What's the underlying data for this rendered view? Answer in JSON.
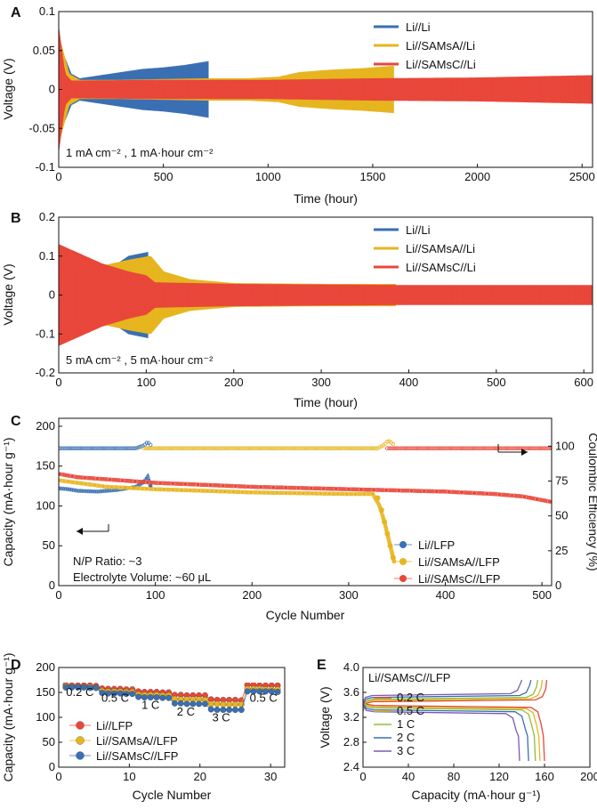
{
  "colors": {
    "blue": "#3a6fb3",
    "yellow": "#e6b51f",
    "red": "#e8473a",
    "green": "#8dbf3f",
    "purple": "#7a5bb5"
  },
  "chart_data": [
    {
      "id": "A",
      "type": "line",
      "panel_label": "A",
      "xlabel": "Time (hour)",
      "ylabel": "Voltage (V)",
      "xlim": [
        0,
        2550
      ],
      "ylim": [
        -0.1,
        0.1
      ],
      "xticks": [
        0,
        500,
        1000,
        1500,
        2000,
        2500
      ],
      "yticks": [
        {
          "v": -0.1,
          "t": "-0.1"
        },
        {
          "v": -0.05,
          "t": "-0.05"
        },
        {
          "v": 0,
          "t": "0"
        },
        {
          "v": 0.05,
          "t": "0.05"
        },
        {
          "v": 0.1,
          "t": "0.1"
        }
      ],
      "annotation": "1 mA cm⁻² , 1 mA·hour cm⁻²",
      "series": [
        {
          "name": "Li//Li",
          "color": "#3a6fb3",
          "end": 715,
          "envelope": [
            [
              0,
              0.06
            ],
            [
              60,
              0.02
            ],
            [
              100,
              0.014
            ],
            [
              200,
              0.018
            ],
            [
              300,
              0.022
            ],
            [
              400,
              0.026
            ],
            [
              500,
              0.028
            ],
            [
              600,
              0.031
            ],
            [
              715,
              0.036
            ]
          ]
        },
        {
          "name": "Li//SAMsA//Li",
          "color": "#e6b51f",
          "end": 1600,
          "envelope": [
            [
              0,
              0.07
            ],
            [
              50,
              0.02
            ],
            [
              100,
              0.012
            ],
            [
              300,
              0.012
            ],
            [
              500,
              0.013
            ],
            [
              715,
              0.014
            ],
            [
              900,
              0.014
            ],
            [
              1050,
              0.016
            ],
            [
              1150,
              0.022
            ],
            [
              1300,
              0.025
            ],
            [
              1450,
              0.027
            ],
            [
              1600,
              0.03
            ]
          ]
        },
        {
          "name": "Li//SAMsC//Li",
          "color": "#e8473a",
          "end": 2550,
          "envelope": [
            [
              0,
              0.08
            ],
            [
              30,
              0.02
            ],
            [
              60,
              0.011
            ],
            [
              500,
              0.012
            ],
            [
              1000,
              0.012
            ],
            [
              1500,
              0.014
            ],
            [
              2000,
              0.015
            ],
            [
              2550,
              0.018
            ]
          ]
        }
      ]
    },
    {
      "id": "B",
      "type": "line",
      "panel_label": "B",
      "xlabel": "Time (hour)",
      "ylabel": "Voltage (V)",
      "xlim": [
        0,
        610
      ],
      "ylim": [
        -0.2,
        0.2
      ],
      "xticks": [
        0,
        100,
        200,
        300,
        400,
        500,
        600
      ],
      "yticks": [
        {
          "v": -0.2,
          "t": "-0.2"
        },
        {
          "v": -0.1,
          "t": "-0.1"
        },
        {
          "v": 0,
          "t": "0"
        },
        {
          "v": 0.1,
          "t": "0.1"
        },
        {
          "v": 0.2,
          "t": "0.2"
        }
      ],
      "annotation": "5 mA cm⁻² , 5 mA·hour cm⁻²",
      "series": [
        {
          "name": "Li//Li",
          "color": "#3a6fb3",
          "end": 102,
          "envelope": [
            [
              0,
              0.06
            ],
            [
              20,
              0.05
            ],
            [
              40,
              0.055
            ],
            [
              60,
              0.07
            ],
            [
              80,
              0.1
            ],
            [
              102,
              0.11
            ]
          ]
        },
        {
          "name": "Li//SAMsA//Li",
          "color": "#e6b51f",
          "end": 385,
          "envelope": [
            [
              0,
              0.08
            ],
            [
              40,
              0.07
            ],
            [
              80,
              0.09
            ],
            [
              105,
              0.1
            ],
            [
              120,
              0.06
            ],
            [
              150,
              0.04
            ],
            [
              200,
              0.03
            ],
            [
              300,
              0.028
            ],
            [
              385,
              0.028
            ]
          ]
        },
        {
          "name": "Li//SAMsC//Li",
          "color": "#e8473a",
          "end": 610,
          "envelope": [
            [
              0,
              0.13
            ],
            [
              20,
              0.11
            ],
            [
              50,
              0.08
            ],
            [
              80,
              0.06
            ],
            [
              100,
              0.05
            ],
            [
              110,
              0.032
            ],
            [
              200,
              0.028
            ],
            [
              400,
              0.025
            ],
            [
              610,
              0.025
            ]
          ]
        }
      ]
    },
    {
      "id": "C",
      "type": "scatter",
      "panel_label": "C",
      "xlabel": "Cycle Number",
      "ylabel": "Capacity (mA·hour g⁻¹)",
      "y2label": "Coulombic Efficiency (%)",
      "xlim": [
        0,
        510
      ],
      "ylim": [
        0,
        210
      ],
      "y2lim": [
        0,
        120
      ],
      "xticks": [
        0,
        100,
        200,
        300,
        400,
        500
      ],
      "yticks": [
        0,
        50,
        100,
        150,
        200
      ],
      "y2ticks": [
        0,
        25,
        50,
        75,
        100
      ],
      "annotations": [
        "N/P Ratio: ~3",
        "Electrolyte Volume: ~60 μL"
      ],
      "series": [
        {
          "name": "Li//LFP",
          "color": "#3a6fb3",
          "end": 95,
          "capacity": [
            [
              1,
              122
            ],
            [
              10,
              121
            ],
            [
              20,
              119
            ],
            [
              40,
              118
            ],
            [
              60,
              120
            ],
            [
              80,
              124
            ],
            [
              88,
              130
            ],
            [
              92,
              136
            ],
            [
              95,
              125
            ]
          ],
          "ce": [
            [
              1,
              98.5
            ],
            [
              80,
              98.5
            ],
            [
              88,
              100.5
            ],
            [
              92,
              103
            ],
            [
              95,
              101
            ]
          ]
        },
        {
          "name": "Li//SAMsA//LFP",
          "color": "#e6b51f",
          "end": 347,
          "capacity": [
            [
              1,
              132
            ],
            [
              50,
              124
            ],
            [
              100,
              121
            ],
            [
              200,
              117
            ],
            [
              300,
              115
            ],
            [
              325,
              115
            ],
            [
              332,
              100
            ],
            [
              337,
              80
            ],
            [
              341,
              60
            ],
            [
              347,
              30
            ]
          ],
          "ce": [
            [
              1,
              98.5
            ],
            [
              330,
              98.5
            ],
            [
              337,
              101
            ],
            [
              341,
              104
            ],
            [
              347,
              101
            ]
          ]
        },
        {
          "name": "Li//SAMsC//LFP",
          "color": "#e8473a",
          "end": 510,
          "capacity": [
            [
              1,
              140
            ],
            [
              20,
              136
            ],
            [
              100,
              129
            ],
            [
              200,
              124
            ],
            [
              300,
              121
            ],
            [
              400,
              118
            ],
            [
              450,
              115
            ],
            [
              480,
              112
            ],
            [
              510,
              105
            ]
          ],
          "ce": [
            [
              1,
              98.5
            ],
            [
              510,
              98.5
            ]
          ]
        }
      ]
    },
    {
      "id": "D",
      "type": "scatter",
      "panel_label": "D",
      "xlabel": "Cycle Number",
      "ylabel": "Capacity (mA·hour g⁻¹)",
      "xlim": [
        0,
        32
      ],
      "ylim": [
        0,
        200
      ],
      "xticks": [
        0,
        10,
        20,
        30
      ],
      "yticks": [
        0,
        50,
        100,
        150,
        200
      ],
      "rate_labels": [
        {
          "t": "0.2 C",
          "x": 3,
          "y": 143
        },
        {
          "t": "0.5 C",
          "x": 8,
          "y": 131
        },
        {
          "t": "1 C",
          "x": 13,
          "y": 117
        },
        {
          "t": "2 C",
          "x": 18,
          "y": 104
        },
        {
          "t": "3 C",
          "x": 23,
          "y": 92
        },
        {
          "t": "0.5 C",
          "x": 29,
          "y": 131
        }
      ],
      "legend_order": [
        0,
        1,
        2
      ],
      "series": [
        {
          "name": "Li//LFP",
          "color": "#e8473a",
          "values": [
            165,
            164,
            164,
            164,
            164,
            163,
            158,
            157,
            157,
            157,
            156,
            156,
            152,
            151,
            151,
            151,
            150,
            150,
            145,
            145,
            144,
            144,
            144,
            144,
            136,
            135,
            135,
            135,
            135,
            134,
            165,
            165,
            164,
            164,
            164,
            164
          ]
        },
        {
          "name": "Li//SAMsA//LFP",
          "color": "#e6b51f",
          "values": [
            162,
            161,
            161,
            161,
            161,
            160,
            153,
            152,
            152,
            152,
            151,
            151,
            146,
            145,
            145,
            145,
            144,
            144,
            137,
            136,
            136,
            136,
            136,
            135,
            127,
            127,
            126,
            126,
            126,
            126,
            157,
            157,
            157,
            156,
            156,
            156
          ]
        },
        {
          "name": "Li//SAMsC//LFP",
          "color": "#3a6fb3",
          "values": [
            160,
            160,
            160,
            160,
            159,
            159,
            149,
            148,
            148,
            148,
            147,
            147,
            141,
            140,
            140,
            140,
            139,
            139,
            128,
            128,
            127,
            127,
            127,
            127,
            116,
            115,
            115,
            115,
            115,
            115,
            152,
            152,
            152,
            152,
            152,
            151
          ]
        }
      ]
    },
    {
      "id": "E",
      "type": "line",
      "panel_label": "E",
      "title": "Li//SAMsC//LFP",
      "xlabel": "Capacity (mA·hour g⁻¹)",
      "ylabel": "Voltage (V)",
      "xlim": [
        0,
        200
      ],
      "ylim": [
        2.4,
        4.0
      ],
      "xticks": [
        0,
        40,
        80,
        120,
        160,
        200
      ],
      "yticks": [
        {
          "v": 2.4,
          "t": "2.4"
        },
        {
          "v": 2.8,
          "t": "2.8"
        },
        {
          "v": 3.2,
          "t": "3.2"
        },
        {
          "v": 3.6,
          "t": "3.6"
        },
        {
          "v": 4.0,
          "t": "4.0"
        }
      ],
      "series": [
        {
          "name": "0.2 C",
          "color": "#e8473a",
          "charge_plateau": 3.45,
          "discharge_plateau": 3.39,
          "charge_cap": 162,
          "discharge_cap": 160
        },
        {
          "name": "0.5 C",
          "color": "#e6b51f",
          "charge_plateau": 3.47,
          "discharge_plateau": 3.37,
          "charge_cap": 158,
          "discharge_cap": 156
        },
        {
          "name": "1 C",
          "color": "#8dbf3f",
          "charge_plateau": 3.49,
          "discharge_plateau": 3.35,
          "charge_cap": 154,
          "discharge_cap": 152
        },
        {
          "name": "2 C",
          "color": "#3a6fb3",
          "charge_plateau": 3.52,
          "discharge_plateau": 3.32,
          "charge_cap": 148,
          "discharge_cap": 146
        },
        {
          "name": "3 C",
          "color": "#7a5bb5",
          "charge_plateau": 3.55,
          "discharge_plateau": 3.29,
          "charge_cap": 140,
          "discharge_cap": 138
        }
      ]
    }
  ]
}
